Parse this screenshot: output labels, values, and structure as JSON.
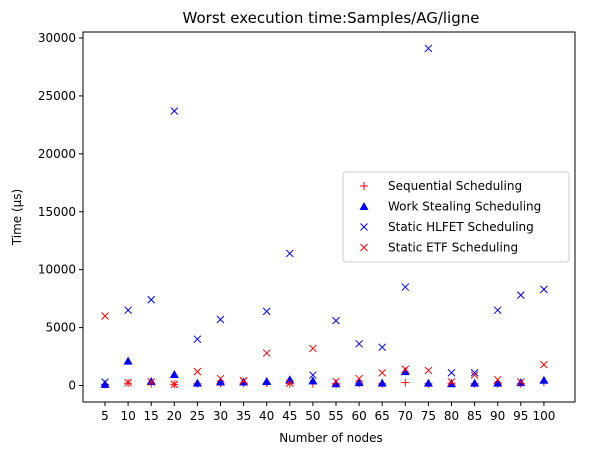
{
  "chart_data": {
    "type": "scatter",
    "title": "Worst execution time:Samples/AG/ligne",
    "xlabel": "Number of nodes",
    "ylabel": "Time (µs)",
    "x": [
      5,
      10,
      15,
      20,
      25,
      30,
      35,
      40,
      45,
      50,
      55,
      60,
      65,
      70,
      75,
      80,
      85,
      90,
      95,
      100
    ],
    "x_ticks": [
      "5",
      "10",
      "15",
      "20",
      "25",
      "30",
      "35",
      "40",
      "45",
      "50",
      "55",
      "60",
      "65",
      "70",
      "75",
      "80",
      "85",
      "90",
      "95",
      "100"
    ],
    "y_ticks": [
      0,
      5000,
      10000,
      15000,
      20000,
      25000,
      30000
    ],
    "y_tick_labels": [
      "0",
      "5000",
      "10000",
      "15000",
      "20000",
      "25000",
      "30000"
    ],
    "ylim": [
      -1500,
      30500
    ],
    "grid": false,
    "legend_position": "center-right",
    "series": [
      {
        "name": "Sequential Scheduling",
        "marker": "plus",
        "color": "#ff0000",
        "values": [
          100,
          200,
          150,
          100,
          150,
          200,
          200,
          200,
          150,
          150,
          150,
          200,
          150,
          250,
          150,
          200,
          150,
          150,
          150,
          300
        ]
      },
      {
        "name": "Work Stealing Scheduling",
        "marker": "triangle",
        "color": "#0000ff",
        "values": [
          100,
          2100,
          350,
          950,
          200,
          300,
          300,
          350,
          500,
          400,
          150,
          250,
          200,
          1200,
          200,
          150,
          200,
          200,
          250,
          450
        ]
      },
      {
        "name": "Static HLFET Scheduling",
        "marker": "x",
        "color": "#0000ff",
        "values": [
          300,
          6500,
          7400,
          23700,
          4000,
          5700,
          400,
          6400,
          11400,
          900,
          5600,
          3600,
          3300,
          8500,
          29100,
          1100,
          1100,
          6500,
          7800,
          8300
        ]
      },
      {
        "name": "Static ETF Scheduling",
        "marker": "x",
        "color": "#ff0000",
        "values": [
          6000,
          250,
          300,
          100,
          1200,
          600,
          400,
          2800,
          200,
          3200,
          350,
          600,
          1100,
          1400,
          1300,
          300,
          900,
          500,
          300,
          1800
        ]
      }
    ]
  }
}
